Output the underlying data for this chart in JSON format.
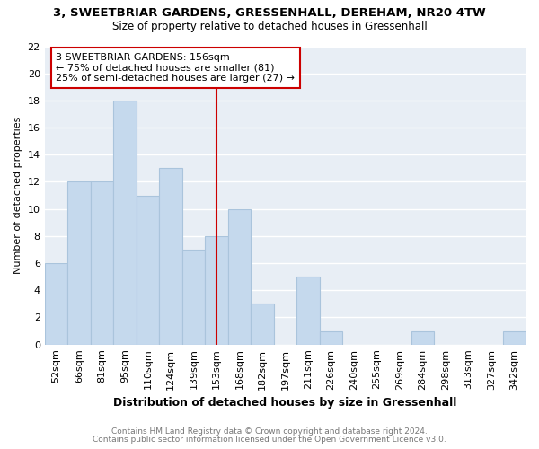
{
  "title_line1": "3, SWEETBRIAR GARDENS, GRESSENHALL, DEREHAM, NR20 4TW",
  "title_line2": "Size of property relative to detached houses in Gressenhall",
  "xlabel": "Distribution of detached houses by size in Gressenhall",
  "ylabel": "Number of detached properties",
  "bins": [
    "52sqm",
    "66sqm",
    "81sqm",
    "95sqm",
    "110sqm",
    "124sqm",
    "139sqm",
    "153sqm",
    "168sqm",
    "182sqm",
    "197sqm",
    "211sqm",
    "226sqm",
    "240sqm",
    "255sqm",
    "269sqm",
    "284sqm",
    "298sqm",
    "313sqm",
    "327sqm",
    "342sqm"
  ],
  "counts": [
    6,
    12,
    12,
    18,
    11,
    13,
    7,
    8,
    10,
    3,
    0,
    5,
    1,
    0,
    0,
    0,
    1,
    0,
    0,
    0,
    1
  ],
  "bar_color": "#c5d9ed",
  "bar_edge_color": "#aac4dc",
  "vline_color": "#cc0000",
  "annotation_text": "3 SWEETBRIAR GARDENS: 156sqm\n← 75% of detached houses are smaller (81)\n25% of semi-detached houses are larger (27) →",
  "annotation_box_color": "#ffffff",
  "annotation_box_edge": "#cc0000",
  "ylim": [
    0,
    22
  ],
  "yticks": [
    0,
    2,
    4,
    6,
    8,
    10,
    12,
    14,
    16,
    18,
    20,
    22
  ],
  "footer_line1": "Contains HM Land Registry data © Crown copyright and database right 2024.",
  "footer_line2": "Contains public sector information licensed under the Open Government Licence v3.0.",
  "plot_bg_color": "#e8eef5",
  "fig_bg_color": "#ffffff",
  "grid_color": "#ffffff"
}
